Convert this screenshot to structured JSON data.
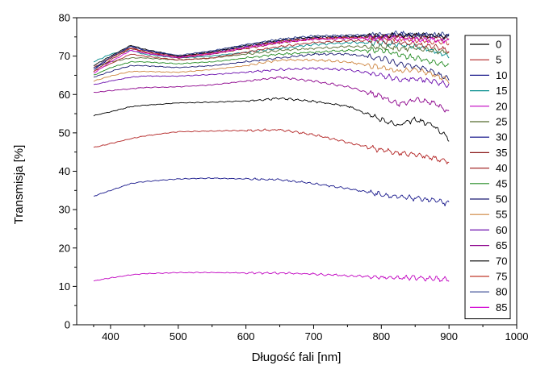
{
  "chart_data": {
    "type": "line",
    "title": "",
    "xlabel": "Długość fali [nm]",
    "ylabel": "Transmisja [%]",
    "xlim": [
      350,
      1000
    ],
    "ylim": [
      0,
      80
    ],
    "xticks": [
      400,
      500,
      600,
      700,
      800,
      900,
      1000
    ],
    "yticks": [
      0,
      10,
      20,
      30,
      40,
      50,
      60,
      70,
      80
    ],
    "grid": false,
    "legend_position": "right",
    "x": [
      375,
      400,
      430,
      450,
      500,
      550,
      600,
      650,
      700,
      750,
      800,
      825,
      850,
      875,
      900
    ],
    "series": [
      {
        "name": "0",
        "color": "#000000",
        "values": [
          54.5,
          55.5,
          56.8,
          57.2,
          57.8,
          58.0,
          58.3,
          59.0,
          58.2,
          57.0,
          53.5,
          52.0,
          53.5,
          52.0,
          48.5
        ]
      },
      {
        "name": "5",
        "color": "#b22222",
        "values": [
          46.2,
          47.2,
          48.5,
          49.2,
          50.3,
          50.5,
          50.6,
          50.8,
          49.5,
          47.5,
          45.5,
          44.8,
          44.5,
          43.5,
          42.5
        ]
      },
      {
        "name": "10",
        "color": "#1a1a8c",
        "values": [
          33.5,
          35.0,
          36.8,
          37.3,
          38.0,
          38.2,
          38.0,
          37.8,
          36.8,
          35.5,
          34.0,
          33.2,
          33.0,
          32.5,
          31.5
        ]
      },
      {
        "name": "15",
        "color": "#008b8b",
        "values": [
          68.5,
          70.5,
          71.5,
          70.5,
          69.5,
          70.0,
          71.0,
          72.0,
          73.0,
          73.5,
          73.5,
          73.0,
          72.5,
          71.5,
          70.0
        ]
      },
      {
        "name": "20",
        "color": "#c000c0",
        "values": [
          11.4,
          12.2,
          13.0,
          13.3,
          13.6,
          13.6,
          13.5,
          13.5,
          13.2,
          12.8,
          12.4,
          12.2,
          12.2,
          12.0,
          11.8
        ]
      },
      {
        "name": "25",
        "color": "#556b2f",
        "values": [
          67.0,
          68.5,
          69.5,
          69.5,
          69.0,
          69.5,
          70.5,
          71.5,
          72.0,
          72.5,
          72.5,
          72.0,
          72.0,
          71.5,
          71.0
        ]
      },
      {
        "name": "30",
        "color": "#000080",
        "values": [
          66.5,
          69.5,
          72.5,
          71.5,
          69.8,
          71.0,
          72.5,
          74.0,
          74.8,
          75.0,
          75.2,
          75.5,
          75.3,
          75.2,
          75.0
        ]
      },
      {
        "name": "35",
        "color": "#8b1a1a",
        "values": [
          66.0,
          69.0,
          72.0,
          71.0,
          69.5,
          70.5,
          72.0,
          73.5,
          74.5,
          74.8,
          75.0,
          75.2,
          75.0,
          74.8,
          74.5
        ]
      },
      {
        "name": "40",
        "color": "#a52a2a",
        "values": [
          66.0,
          68.0,
          70.5,
          70.0,
          69.0,
          69.5,
          71.0,
          72.5,
          73.5,
          74.0,
          74.0,
          73.5,
          73.0,
          72.5,
          71.5
        ]
      },
      {
        "name": "45",
        "color": "#228b22",
        "values": [
          65.0,
          67.0,
          68.5,
          68.5,
          68.0,
          68.5,
          69.5,
          70.5,
          71.0,
          71.5,
          71.5,
          70.5,
          69.5,
          68.5,
          67.5
        ]
      },
      {
        "name": "50",
        "color": "#191970",
        "values": [
          64.5,
          66.0,
          67.5,
          67.5,
          67.0,
          67.5,
          68.5,
          69.5,
          70.5,
          70.5,
          69.5,
          68.0,
          67.5,
          66.0,
          64.0
        ]
      },
      {
        "name": "55",
        "color": "#cd853f",
        "values": [
          63.5,
          64.8,
          66.0,
          66.0,
          65.8,
          66.5,
          67.5,
          69.0,
          69.0,
          68.5,
          67.0,
          66.0,
          66.5,
          65.5,
          63.5
        ]
      },
      {
        "name": "60",
        "color": "#6a0dad",
        "values": [
          62.5,
          63.5,
          64.5,
          64.8,
          64.8,
          65.2,
          65.8,
          66.5,
          66.8,
          66.5,
          65.0,
          64.0,
          64.0,
          63.5,
          62.5
        ]
      },
      {
        "name": "65",
        "color": "#8b008b",
        "values": [
          60.5,
          61.0,
          61.5,
          61.8,
          62.0,
          62.5,
          63.5,
          64.5,
          63.5,
          62.0,
          59.5,
          57.5,
          58.5,
          58.0,
          55.5
        ]
      },
      {
        "name": "70",
        "color": "#000000",
        "values": [
          67.5,
          70.0,
          72.8,
          71.8,
          70.0,
          71.2,
          72.8,
          74.2,
          75.0,
          75.2,
          75.3,
          75.5,
          75.5,
          75.3,
          75.2
        ]
      },
      {
        "name": "75",
        "color": "#c0392b",
        "values": [
          67.0,
          69.5,
          72.2,
          71.2,
          69.8,
          70.8,
          72.3,
          73.8,
          74.5,
          74.8,
          74.8,
          74.5,
          74.2,
          73.8,
          73.5
        ]
      },
      {
        "name": "80",
        "color": "#2c3e8c",
        "values": [
          66.8,
          69.8,
          72.6,
          71.6,
          70.2,
          71.4,
          73.0,
          74.4,
          75.2,
          75.4,
          75.6,
          75.8,
          75.6,
          75.5,
          75.4
        ]
      },
      {
        "name": "85",
        "color": "#d100d1",
        "values": [
          65.5,
          68.5,
          71.5,
          70.8,
          69.6,
          70.6,
          72.2,
          73.6,
          74.4,
          74.6,
          74.6,
          74.6,
          74.4,
          74.2,
          74.0
        ]
      }
    ]
  }
}
